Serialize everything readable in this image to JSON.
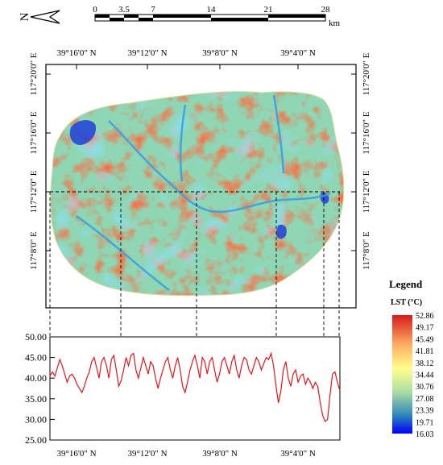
{
  "north_arrow": {
    "letter": "N"
  },
  "scale_bar": {
    "ticks": [
      "0",
      "3.5",
      "7",
      "14",
      "21",
      "28"
    ],
    "unit": "km"
  },
  "map": {
    "top_labels": [
      "39°16'0\" N",
      "39°12'0\" N",
      "39°8'0\" N",
      "39°4'0\" N"
    ],
    "left_labels": [
      "117°20'0\" E",
      "117°16'0\" E",
      "117°12'0\" E",
      "117°8'0\" E"
    ],
    "right_labels": [
      "117°20'0\" E",
      "117°16'0\" E",
      "117°12'0\" E",
      "117°8'0\" E"
    ]
  },
  "legend": {
    "title": "Legend",
    "subtitle": "LST (°C)",
    "values": [
      "52.86",
      "49.17",
      "45.49",
      "41.81",
      "38.12",
      "34.44",
      "30.76",
      "27.08",
      "23.39",
      "19.71",
      "16.03"
    ],
    "colors": [
      "#d7191c",
      "#fdae61",
      "#ffff8c",
      "#abdda4",
      "#2b83ba",
      "#0000ff"
    ]
  },
  "chart_data": {
    "type": "line",
    "title": "",
    "xlabel": "",
    "ylabel": "",
    "ylim": [
      25,
      50
    ],
    "y_ticks": [
      "50.00",
      "45.00",
      "40.00",
      "35.00",
      "30.00",
      "25.00"
    ],
    "x_tick_labels": [
      "39°16'0\" N",
      "39°12'0\" N",
      "39°8'0\" N",
      "39°4'0\" N"
    ],
    "series": [
      {
        "color": "#e8141b",
        "points": [
          [
            0,
            40.5
          ],
          [
            3,
            41.5
          ],
          [
            6,
            40.5
          ],
          [
            9,
            42.5
          ],
          [
            12,
            44.5
          ],
          [
            15,
            43
          ],
          [
            18,
            41
          ],
          [
            21,
            39
          ],
          [
            24,
            40.5
          ],
          [
            27,
            41
          ],
          [
            30,
            40
          ],
          [
            33,
            38.5
          ],
          [
            36,
            37.5
          ],
          [
            39,
            36.5
          ],
          [
            42,
            38
          ],
          [
            45,
            40
          ],
          [
            48,
            41.5
          ],
          [
            51,
            44
          ],
          [
            54,
            45
          ],
          [
            57,
            42.5
          ],
          [
            60,
            40
          ],
          [
            63,
            44
          ],
          [
            66,
            45
          ],
          [
            69,
            43
          ],
          [
            72,
            40
          ],
          [
            75,
            44.5
          ],
          [
            78,
            45.5
          ],
          [
            81,
            42
          ],
          [
            84,
            38
          ],
          [
            87,
            39.5
          ],
          [
            90,
            42
          ],
          [
            93,
            45
          ],
          [
            96,
            43
          ],
          [
            99,
            45.5
          ],
          [
            102,
            46
          ],
          [
            105,
            42
          ],
          [
            108,
            40
          ],
          [
            111,
            42.5
          ],
          [
            114,
            45
          ],
          [
            117,
            43
          ],
          [
            120,
            41
          ],
          [
            123,
            44
          ],
          [
            126,
            43
          ],
          [
            129,
            40
          ],
          [
            132,
            37.5
          ],
          [
            135,
            40
          ],
          [
            138,
            42
          ],
          [
            141,
            44
          ],
          [
            144,
            45
          ],
          [
            147,
            42
          ],
          [
            150,
            40
          ],
          [
            153,
            43
          ],
          [
            156,
            45
          ],
          [
            159,
            42
          ],
          [
            162,
            38
          ],
          [
            165,
            36.5
          ],
          [
            168,
            39
          ],
          [
            171,
            42
          ],
          [
            174,
            44
          ],
          [
            177,
            45.5
          ],
          [
            180,
            43
          ],
          [
            183,
            40
          ],
          [
            186,
            45
          ],
          [
            189,
            44
          ],
          [
            192,
            41
          ],
          [
            195,
            44
          ],
          [
            198,
            45
          ],
          [
            201,
            42
          ],
          [
            204,
            39
          ],
          [
            207,
            41
          ],
          [
            210,
            44
          ],
          [
            213,
            45
          ],
          [
            216,
            43
          ],
          [
            219,
            41
          ],
          [
            222,
            44
          ],
          [
            225,
            45.5
          ],
          [
            228,
            42
          ],
          [
            231,
            40
          ],
          [
            234,
            43
          ],
          [
            237,
            45
          ],
          [
            240,
            44.5
          ],
          [
            243,
            42
          ],
          [
            246,
            41
          ],
          [
            249,
            43
          ],
          [
            252,
            45
          ],
          [
            255,
            44
          ],
          [
            258,
            42
          ],
          [
            261,
            43.5
          ],
          [
            264,
            45
          ],
          [
            267,
            44.5
          ],
          [
            270,
            46
          ],
          [
            273,
            43
          ],
          [
            276,
            38
          ],
          [
            279,
            34
          ],
          [
            282,
            37
          ],
          [
            285,
            42
          ],
          [
            288,
            44
          ],
          [
            291,
            40
          ],
          [
            294,
            38
          ],
          [
            297,
            41
          ],
          [
            300,
            42
          ],
          [
            303,
            39
          ],
          [
            306,
            40.5
          ],
          [
            309,
            41
          ],
          [
            312,
            38.5
          ],
          [
            315,
            40
          ],
          [
            318,
            39
          ],
          [
            321,
            37.5
          ],
          [
            324,
            39
          ],
          [
            327,
            38
          ],
          [
            330,
            34
          ],
          [
            333,
            31
          ],
          [
            336,
            29.5
          ],
          [
            339,
            30
          ],
          [
            342,
            36
          ],
          [
            345,
            41
          ],
          [
            348,
            41.5
          ],
          [
            351,
            39
          ],
          [
            354,
            37
          ]
        ]
      }
    ]
  }
}
